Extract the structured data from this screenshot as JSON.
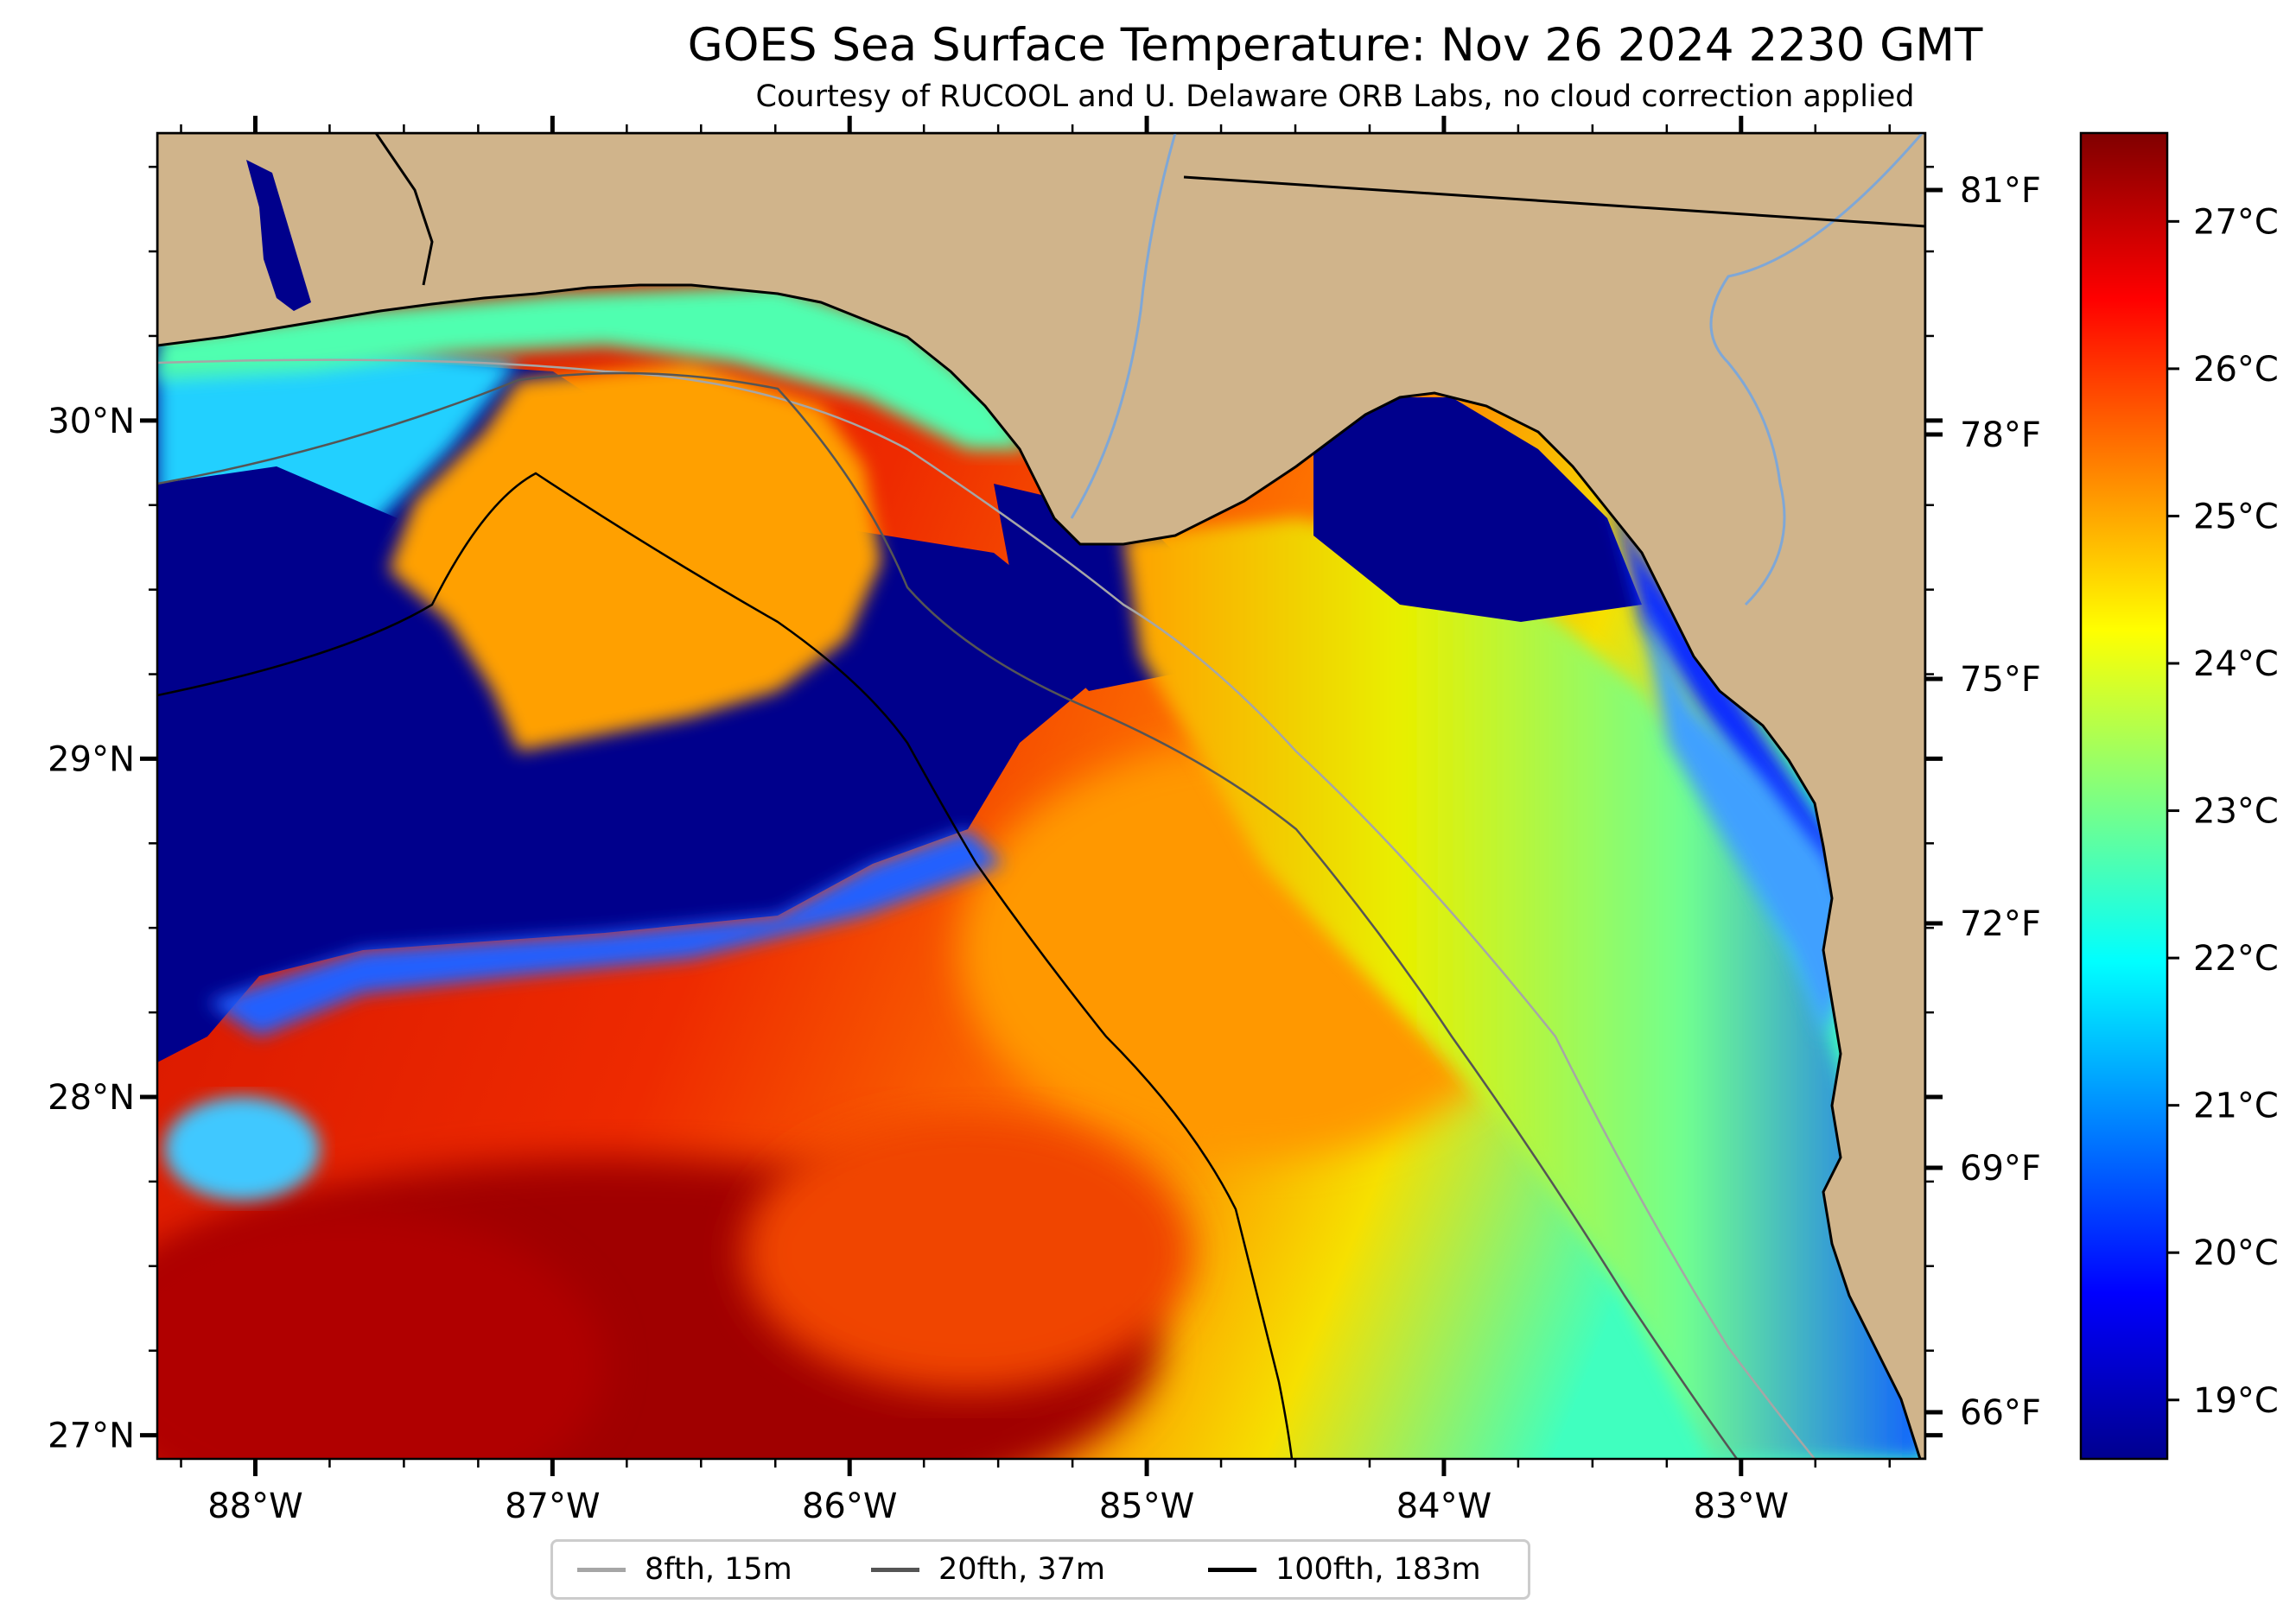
{
  "header": {
    "title": "GOES Sea Surface Temperature: Nov 26 2024 2230 GMT",
    "subtitle": "Courtesy of RUCOOL and U. Delaware ORB Labs, no cloud correction applied"
  },
  "map": {
    "extent_lon": [
      -88.33,
      -82.38
    ],
    "extent_lat": [
      26.93,
      30.85
    ],
    "lon_ticks": [
      "88°W",
      "87°W",
      "86°W",
      "85°W",
      "84°W",
      "83°W"
    ],
    "lat_ticks": [
      "30°N",
      "29°N",
      "28°N",
      "27°N"
    ],
    "fahrenheit_ticks": [
      "81°F",
      "78°F",
      "75°F",
      "72°F",
      "69°F",
      "66°F"
    ],
    "colors": {
      "land": "#d0b48b",
      "ocean_cold": "#00008c",
      "water_inland": "#7fa7d6"
    }
  },
  "colorbar": {
    "min_c": 18.6,
    "max_c": 27.6,
    "colormap": "jet",
    "ticks": [
      "19°C",
      "20°C",
      "21°C",
      "22°C",
      "23°C",
      "24°C",
      "25°C",
      "26°C",
      "27°C"
    ]
  },
  "legend": {
    "items": [
      {
        "label": "8fth, 15m",
        "color": "#a6a6a6"
      },
      {
        "label": "20fth, 37m",
        "color": "#555555"
      },
      {
        "label": "100fth, 183m",
        "color": "#000000"
      }
    ]
  }
}
